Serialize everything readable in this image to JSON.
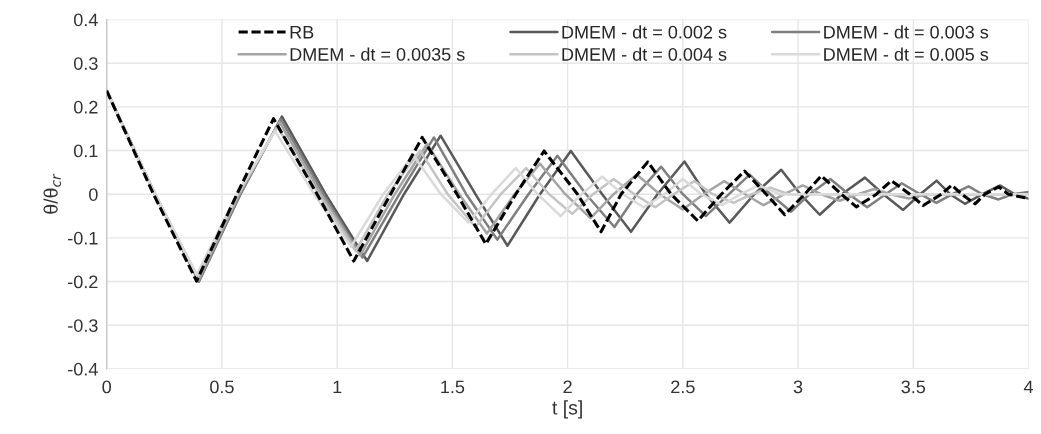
{
  "chart_data": {
    "type": "line",
    "xlabel": "t [s]",
    "ylabel": "θ/θ$_{cr}$",
    "xlim": [
      0,
      4
    ],
    "xticks": [
      0,
      0.5,
      1,
      1.5,
      2,
      2.5,
      3,
      3.5,
      4
    ],
    "ylim": [
      -0.4,
      0.4
    ],
    "yticks": [
      -0.4,
      -0.3,
      -0.2,
      -0.1,
      0,
      0.1,
      0.2,
      0.3,
      0.4
    ],
    "grid": true,
    "legend": "top",
    "series": [
      {
        "name": "RB",
        "color": "#000000",
        "line_style": "dashed",
        "x": [
          0,
          0.203,
          0.39,
          0.565,
          0.724,
          0.913,
          1.072,
          1.232,
          1.369,
          1.52,
          1.645,
          1.775,
          1.898,
          2.043,
          2.145,
          2.232,
          2.348,
          2.449,
          2.565,
          2.667,
          2.768,
          2.862,
          2.942,
          3.029,
          3.101,
          3.188,
          3.253,
          3.34,
          3.405,
          3.485,
          3.543,
          3.622,
          3.667,
          3.71,
          3.768,
          3.811,
          3.87,
          3.913,
          4
        ],
        "values": [
          0.237,
          0,
          -0.199,
          0,
          0.173,
          0,
          -0.153,
          0,
          0.13,
          0,
          -0.114,
          0,
          0.099,
          0,
          -0.086,
          0,
          0.074,
          0,
          -0.061,
          0,
          0.053,
          0,
          -0.047,
          0,
          0.042,
          0,
          -0.029,
          0,
          0.031,
          0,
          -0.026,
          0,
          0.021,
          0,
          -0.022,
          0,
          0.017,
          0,
          -0.01
        ]
      },
      {
        "name": "DMEM - dt = 0.002 s",
        "color": "#595959",
        "line_style": "solid",
        "x": [
          0,
          0.21,
          0.4,
          0.58,
          0.76,
          0.95,
          1.13,
          1.29,
          1.449,
          1.6,
          1.739,
          1.88,
          2.014,
          2.15,
          2.275,
          2.39,
          2.507,
          2.6,
          2.703,
          2.81,
          2.927,
          3.01,
          3.094,
          3.19,
          3.29,
          3.37,
          3.456,
          3.53,
          3.601,
          3.66,
          3.724,
          3.8,
          3.877,
          3.94,
          4
        ],
        "values": [
          0.237,
          0,
          -0.2,
          0,
          0.178,
          0,
          -0.153,
          0,
          0.134,
          0,
          -0.118,
          0,
          0.099,
          0,
          -0.086,
          0,
          0.075,
          0,
          -0.065,
          0,
          0.056,
          0,
          -0.047,
          0,
          0.038,
          0,
          -0.036,
          0,
          0.031,
          0,
          -0.022,
          0,
          0.02,
          0,
          -0.01
        ]
      },
      {
        "name": "DMEM - dt = 0.003 s",
        "color": "#7f7f7f",
        "line_style": "solid",
        "x": [
          0,
          0.21,
          0.4,
          0.58,
          0.755,
          0.94,
          1.11,
          1.27,
          1.42,
          1.56,
          1.695,
          1.83,
          1.956,
          2.08,
          2.203,
          2.3,
          2.406,
          2.5,
          2.6,
          2.7,
          2.79,
          2.88,
          2.97,
          3.05,
          3.14,
          3.22,
          3.3,
          3.38,
          3.45,
          3.53,
          3.6,
          3.67,
          3.74,
          3.8,
          3.87,
          3.93,
          4
        ],
        "values": [
          0.237,
          0,
          -0.2,
          0,
          0.172,
          0,
          -0.145,
          0,
          0.13,
          0,
          -0.104,
          0,
          0.088,
          0,
          -0.075,
          0,
          0.063,
          0,
          -0.05,
          0,
          0.045,
          0,
          -0.04,
          0,
          0.035,
          0,
          -0.03,
          0,
          0.025,
          0,
          -0.02,
          0,
          0.018,
          0,
          -0.012,
          0,
          0.005
        ]
      },
      {
        "name": "DMEM - dt = 0.0035 s",
        "color": "#a5a5a5",
        "line_style": "solid",
        "x": [
          0,
          0.21,
          0.4,
          0.575,
          0.75,
          0.93,
          1.1,
          1.25,
          1.39,
          1.53,
          1.65,
          1.77,
          1.88,
          1.99,
          2.1,
          2.2,
          2.3,
          2.4,
          2.5,
          2.59,
          2.68,
          2.77,
          2.85,
          2.94,
          3.02,
          3.1,
          3.18,
          3.26,
          3.33,
          3.4,
          3.48,
          3.56,
          4
        ],
        "values": [
          0.237,
          0,
          -0.195,
          0,
          0.165,
          0,
          -0.14,
          0,
          0.115,
          0,
          -0.09,
          0,
          0.07,
          0,
          -0.055,
          0,
          0.045,
          0,
          -0.035,
          0,
          0.03,
          0,
          -0.025,
          0,
          0.02,
          0,
          -0.015,
          0,
          0.012,
          0,
          -0.01,
          0,
          0
        ]
      },
      {
        "name": "DMEM - dt = 0.004 s",
        "color": "#c4c4c4",
        "line_style": "solid",
        "x": [
          0,
          0.21,
          0.395,
          0.57,
          0.74,
          0.92,
          1.08,
          1.22,
          1.36,
          1.48,
          1.6,
          1.71,
          1.82,
          1.92,
          2.02,
          2.11,
          2.2,
          2.29,
          2.38,
          2.46,
          2.55,
          2.63,
          2.72,
          2.8,
          2.88,
          2.96,
          4
        ],
        "values": [
          0.237,
          0,
          -0.19,
          0,
          0.155,
          0,
          -0.13,
          0,
          0.1,
          0,
          -0.075,
          0,
          0.06,
          0,
          -0.045,
          0,
          0.035,
          0,
          -0.03,
          0,
          0.03,
          0,
          -0.02,
          0,
          0.015,
          0,
          0
        ]
      },
      {
        "name": "DMEM - dt = 0.005 s",
        "color": "#dadada",
        "line_style": "solid",
        "x": [
          0,
          0.21,
          0.39,
          0.565,
          0.73,
          0.9,
          1.06,
          1.2,
          1.33,
          1.45,
          1.57,
          1.67,
          1.775,
          1.87,
          1.97,
          2.06,
          2.15,
          2.24,
          2.33,
          2.42,
          2.5,
          2.58,
          2.67,
          2.75,
          2.83,
          2.92,
          4
        ],
        "values": [
          0.237,
          0,
          -0.185,
          0,
          0.145,
          0,
          -0.12,
          0,
          0.09,
          0,
          -0.065,
          0,
          0.06,
          0,
          -0.05,
          0,
          0.04,
          0,
          -0.03,
          0,
          0.035,
          0,
          -0.025,
          0,
          0.02,
          0,
          0
        ]
      }
    ]
  }
}
